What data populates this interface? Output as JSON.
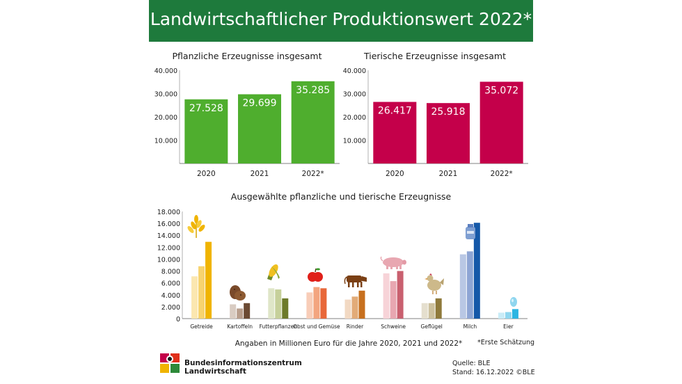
{
  "header": {
    "title": "Landwirtschaftlicher Produktionswert 2022*"
  },
  "chart_data": [
    {
      "type": "bar",
      "title": "Pflanzliche Erzeugnisse insgesamt",
      "categories": [
        "2020",
        "2021",
        "2022*"
      ],
      "values": [
        27528,
        29699,
        35285
      ],
      "value_labels": [
        "27.528",
        "29.699",
        "35.285"
      ],
      "ylim": [
        0,
        40000
      ],
      "yticks": [
        10000,
        20000,
        30000,
        40000
      ],
      "ytick_labels": [
        "10.000",
        "20.000",
        "30.000",
        "40.000"
      ],
      "color": "#4fae2e"
    },
    {
      "type": "bar",
      "title": "Tierische Erzeugnisse insgesamt",
      "categories": [
        "2020",
        "2021",
        "2022*"
      ],
      "values": [
        26417,
        25918,
        35072
      ],
      "value_labels": [
        "26.417",
        "25.918",
        "35.072"
      ],
      "ylim": [
        0,
        40000
      ],
      "yticks": [
        10000,
        20000,
        30000,
        40000
      ],
      "ytick_labels": [
        "10.000",
        "20.000",
        "30.000",
        "40.000"
      ],
      "color": "#c4004a"
    },
    {
      "type": "bar",
      "title": "Ausgewählte pflanzliche und tierische Erzeugnisse",
      "categories": [
        "Getreide",
        "Kartoffeln",
        "Futterpflanzen",
        "Obst und Gemüse",
        "Rinder",
        "Schweine",
        "Geflügel",
        "Milch",
        "Eier"
      ],
      "series": [
        {
          "values": [
            7100,
            2400,
            5100,
            4400,
            3200,
            7600,
            2600,
            10800,
            1000
          ]
        },
        {
          "values": [
            8800,
            1700,
            4900,
            5300,
            3700,
            6300,
            2600,
            11300,
            1100
          ]
        },
        {
          "values": [
            12900,
            2600,
            3400,
            5100,
            4700,
            8000,
            3400,
            16100,
            1600
          ]
        }
      ],
      "category_colors": [
        [
          "#fbe7b0",
          "#f7d36e",
          "#f0b400"
        ],
        [
          "#d9ccc2",
          "#b89e8c",
          "#6b4a33"
        ],
        [
          "#dfe6c8",
          "#c6d09a",
          "#6d7a2a"
        ],
        [
          "#f8cdb8",
          "#f3a57f",
          "#e8683a"
        ],
        [
          "#f2d9c3",
          "#e2ab78",
          "#c7701e"
        ],
        [
          "#f7d3d8",
          "#e8a7b1",
          "#c9606f"
        ],
        [
          "#e5dfce",
          "#cdc19e",
          "#8f7a3b"
        ],
        [
          "#b9c7e4",
          "#8ea5d4",
          "#1558a8"
        ],
        [
          "#c9ecf7",
          "#8fd6ef",
          "#2cb5e2"
        ]
      ],
      "ylim": [
        0,
        18000
      ],
      "yticks": [
        0,
        2000,
        4000,
        6000,
        8000,
        10000,
        12000,
        14000,
        16000,
        18000
      ],
      "ytick_labels": [
        "0",
        "2.000",
        "4.000",
        "6.000",
        "8.000",
        "10.000",
        "12.000",
        "14.000",
        "16.000",
        "18.000"
      ],
      "icons": [
        "wheat-icon",
        "potato-icon",
        "corn-icon",
        "apple-icon",
        "cow-icon",
        "pig-icon",
        "chicken-icon",
        "milk-can-icon",
        "egg-icon"
      ]
    }
  ],
  "footnote_units": "Angaben in Millionen Euro für die Jahre 2020, 2021 und 2022*",
  "footnote_estimate": "*Erste Schätzung",
  "logo": {
    "line1": "Bundesinformationszentrum",
    "line2": "Landwirtschaft"
  },
  "source": "Quelle: BLE",
  "status": "Stand: 16.12.2022 ©BLE"
}
